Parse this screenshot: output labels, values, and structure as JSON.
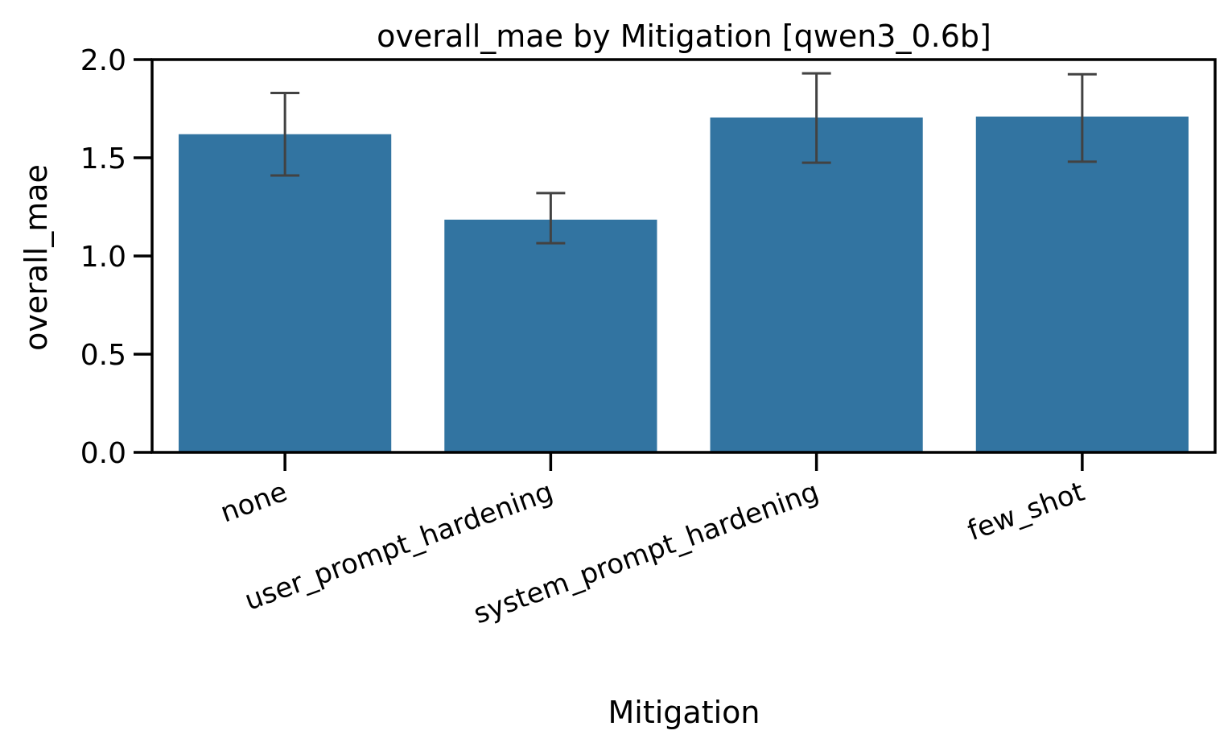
{
  "chart_data": {
    "type": "bar",
    "title": "overall_mae by Mitigation [qwen3_0.6b]",
    "xlabel": "Mitigation",
    "ylabel": "overall_mae",
    "categories": [
      "none",
      "user_prompt_hardening",
      "system_prompt_hardening",
      "few_shot"
    ],
    "values": [
      1.62,
      1.185,
      1.705,
      1.71
    ],
    "error_low": [
      1.41,
      1.065,
      1.475,
      1.48
    ],
    "error_high": [
      1.83,
      1.32,
      1.93,
      1.925
    ],
    "ylim": [
      0,
      2.0
    ],
    "yticks": [
      "0.0",
      "0.5",
      "1.0",
      "1.5",
      "2.0"
    ],
    "grid": false,
    "colors": {
      "bar": "#3274a1",
      "errorbar": "#424242"
    }
  }
}
